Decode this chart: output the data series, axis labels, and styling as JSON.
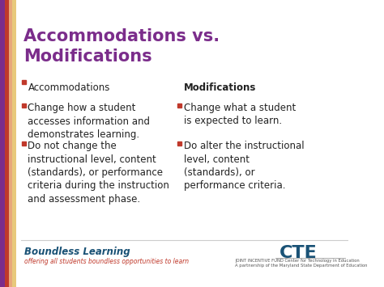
{
  "title": "Accommodations vs.\nModifications",
  "title_color": "#7B2D8B",
  "bg_color": "#FFFFFF",
  "left_stripe_colors": [
    "#7B2D8B",
    "#C0392B",
    "#E8A87C",
    "#E8C97C"
  ],
  "bullet_color": "#C0392B",
  "left_header": "Accommodations",
  "left_bullets": [
    "Change how a student\naccesses information and\ndemonstrates learning.",
    "Do not change the\ninstructional level, content\n(standards), or performance\ncriteria during the instruction\nand assessment phase."
  ],
  "right_header": "Modifications",
  "right_header_bold": true,
  "right_bullets": [
    "Change what a student\nis expected to learn.",
    "Do alter the instructional\nlevel, content\n(standards), or\nperformance criteria."
  ],
  "footer_left_title": "Boundless Learning",
  "footer_left_sub": "offering all students boundless opportunities to learn",
  "footer_right": "CTE",
  "footer_right_sub": "JOINT INCENTIVE FUND Center for Technology in Education\nA partnership of the Maryland State Department of Education",
  "body_text_color": "#222222",
  "footer_title_color": "#1a5276",
  "footer_sub_color": "#C0392B",
  "right_header_color": "#222222",
  "bottom_bar_color": "#F5F5F5"
}
